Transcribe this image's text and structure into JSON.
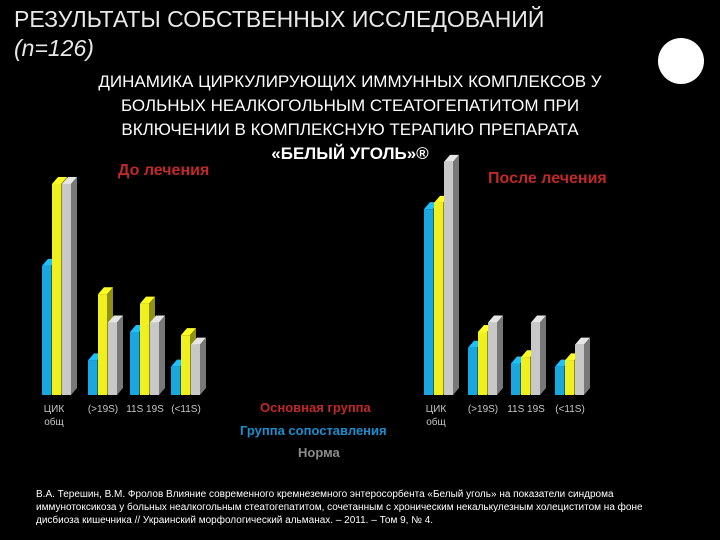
{
  "header": {
    "title": "РЕЗУЛЬТАТЫ СОБСТВЕННЫХ ИССЛЕДОВАНИЙ",
    "subtitle": "(n=126)"
  },
  "chart_data": {
    "type": "bar",
    "title_lines": [
      "ДИНАМИКА ЦИРКУЛИРУЮЩИХ ИММУННЫХ КОМПЛЕКСОВ  У",
      "БОЛЬНЫХ НЕАЛКОГОЛЬНЫМ СТЕАТОГЕПАТИТОМ  ПРИ",
      "ВКЛЮЧЕНИИ В КОМПЛЕКСНУЮ ТЕРАПИЮ ПРЕПАРАТА",
      "«БЕЛЫЙ УГОЛЬ»®"
    ],
    "groups": [
      {
        "label": "До лечения",
        "categories": [
          "ЦИК общ",
          "(>19S)",
          "11S 19S",
          "(<11S)"
        ]
      },
      {
        "label": "После лечения",
        "categories": [
          "ЦИК общ",
          "(>19S)",
          "11S 19S",
          "(<11S)"
        ]
      }
    ],
    "series": [
      {
        "name": "Основная группа",
        "color": "#1aa7e0",
        "values": [
          [
            4.1,
            1.1,
            2.0,
            0.9
          ],
          [
            5.9,
            1.5,
            1.0,
            0.9
          ]
        ]
      },
      {
        "name": "Группа сопоставления",
        "color": "#f0f01e",
        "values": [
          [
            6.7,
            3.2,
            2.9,
            1.9
          ],
          [
            6.1,
            2.0,
            1.2,
            1.1
          ]
        ]
      },
      {
        "name": "Норма",
        "color": "#c8c8c8",
        "values": [
          [
            6.7,
            2.3,
            2.3,
            1.6
          ],
          [
            7.4,
            2.3,
            2.3,
            1.6
          ]
        ]
      }
    ],
    "ylim": [
      0,
      8
    ]
  },
  "citation": "В.А. Терешин, В.М. Фролов Влияние современного кремнеземного энтеросорбента «Белый уголь» на показатели синдрома иммунотоксикоза у больных неалкогольным стеатогепатитом, сочетанным с хроническим некалькулезным холециститом на фоне дисбиоза кишечника // Украинский морфологический альманах. – 2011. – Том 9, № 4."
}
